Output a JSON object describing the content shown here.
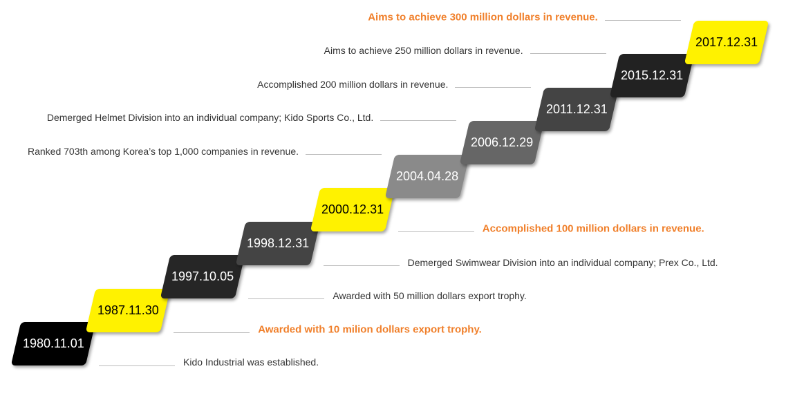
{
  "milestones": [
    {
      "date": "1980.11.01",
      "text": "Kido Industrial was established."
    },
    {
      "date": "1987.11.30",
      "text": "Awarded with 10 milion dollars export trophy."
    },
    {
      "date": "1997.10.05",
      "text": "Awarded with 50 million dollars export trophy."
    },
    {
      "date": "1998.12.31",
      "text": "Demerged Swimwear Division into an individual company; Prex Co., Ltd."
    },
    {
      "date": "2000.12.31",
      "text": "Accomplished 100 million dollars in revenue."
    },
    {
      "date": "2004.04.28",
      "text": "Ranked 703th among Korea’s top 1,000 companies in revenue."
    },
    {
      "date": "2006.12.29",
      "text": "Demerged Helmet Division into an individual company; Kido Sports Co., Ltd."
    },
    {
      "date": "2011.12.31",
      "text": "Accomplished 200 million dollars in revenue."
    },
    {
      "date": "2015.12.31",
      "text": "Aims to achieve 250 million dollars in revenue."
    },
    {
      "date": "2017.12.31",
      "text": "Aims to achieve 300 million dollars in revenue."
    }
  ]
}
